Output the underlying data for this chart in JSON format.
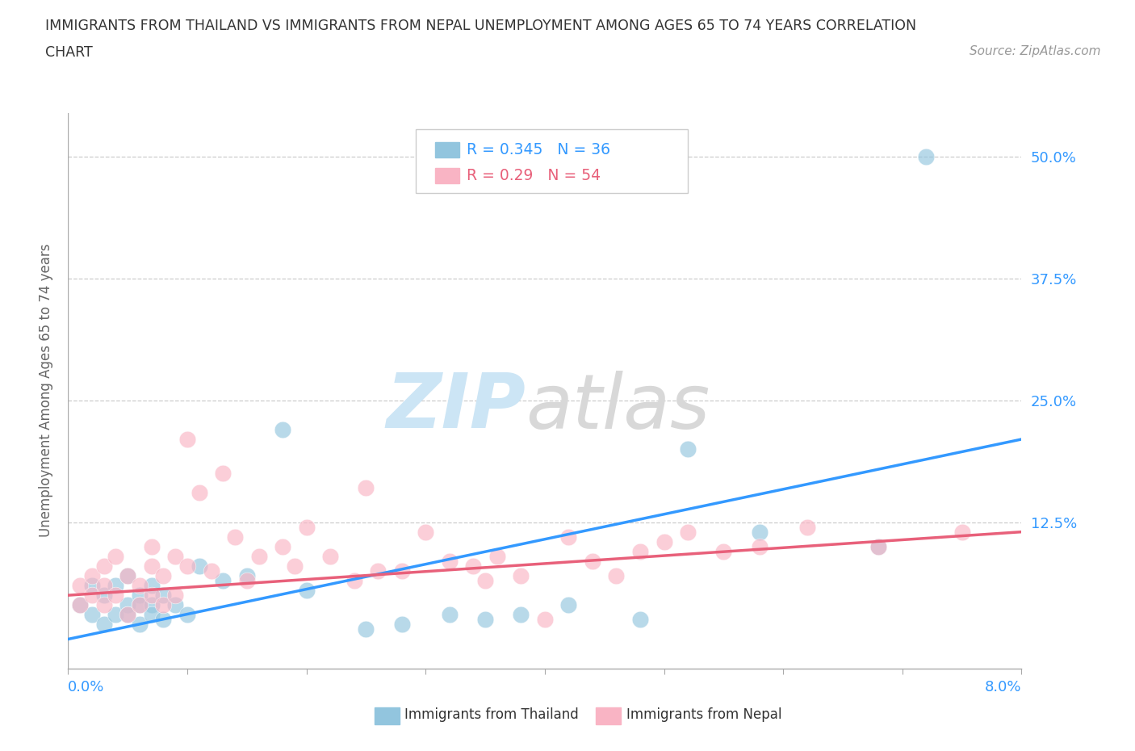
{
  "title_line1": "IMMIGRANTS FROM THAILAND VS IMMIGRANTS FROM NEPAL UNEMPLOYMENT AMONG AGES 65 TO 74 YEARS CORRELATION",
  "title_line2": "CHART",
  "source_text": "Source: ZipAtlas.com",
  "ylabel": "Unemployment Among Ages 65 to 74 years",
  "ytick_vals": [
    0.0,
    0.125,
    0.25,
    0.375,
    0.5
  ],
  "ytick_labels": [
    "",
    "12.5%",
    "25.0%",
    "37.5%",
    "50.0%"
  ],
  "xlim": [
    0.0,
    0.08
  ],
  "ylim": [
    -0.025,
    0.545
  ],
  "thailand_color": "#92c5de",
  "nepal_color": "#f9b4c4",
  "thailand_line_color": "#3399ff",
  "nepal_line_color": "#e8607a",
  "thailand_R": 0.345,
  "thailand_N": 36,
  "nepal_R": 0.29,
  "nepal_N": 54,
  "legend_label_thailand": "Immigrants from Thailand",
  "legend_label_nepal": "Immigrants from Nepal",
  "thailand_scatter_x": [
    0.001,
    0.002,
    0.002,
    0.003,
    0.003,
    0.004,
    0.004,
    0.005,
    0.005,
    0.005,
    0.006,
    0.006,
    0.006,
    0.007,
    0.007,
    0.007,
    0.008,
    0.008,
    0.009,
    0.01,
    0.011,
    0.013,
    0.015,
    0.018,
    0.02,
    0.025,
    0.028,
    0.032,
    0.035,
    0.038,
    0.042,
    0.048,
    0.052,
    0.058,
    0.068,
    0.072
  ],
  "thailand_scatter_y": [
    0.04,
    0.03,
    0.06,
    0.05,
    0.02,
    0.03,
    0.06,
    0.04,
    0.07,
    0.03,
    0.05,
    0.02,
    0.04,
    0.04,
    0.06,
    0.03,
    0.05,
    0.025,
    0.04,
    0.03,
    0.08,
    0.065,
    0.07,
    0.22,
    0.055,
    0.015,
    0.02,
    0.03,
    0.025,
    0.03,
    0.04,
    0.025,
    0.2,
    0.115,
    0.1,
    0.5
  ],
  "nepal_scatter_x": [
    0.001,
    0.001,
    0.002,
    0.002,
    0.003,
    0.003,
    0.003,
    0.004,
    0.004,
    0.005,
    0.005,
    0.006,
    0.006,
    0.007,
    0.007,
    0.007,
    0.008,
    0.008,
    0.009,
    0.009,
    0.01,
    0.01,
    0.011,
    0.012,
    0.013,
    0.014,
    0.015,
    0.016,
    0.018,
    0.019,
    0.02,
    0.022,
    0.024,
    0.025,
    0.026,
    0.028,
    0.03,
    0.032,
    0.034,
    0.035,
    0.036,
    0.038,
    0.04,
    0.042,
    0.044,
    0.046,
    0.048,
    0.05,
    0.052,
    0.055,
    0.058,
    0.062,
    0.068,
    0.075
  ],
  "nepal_scatter_y": [
    0.04,
    0.06,
    0.05,
    0.07,
    0.04,
    0.06,
    0.08,
    0.05,
    0.09,
    0.03,
    0.07,
    0.06,
    0.04,
    0.05,
    0.08,
    0.1,
    0.04,
    0.07,
    0.05,
    0.09,
    0.21,
    0.08,
    0.155,
    0.075,
    0.175,
    0.11,
    0.065,
    0.09,
    0.1,
    0.08,
    0.12,
    0.09,
    0.065,
    0.16,
    0.075,
    0.075,
    0.115,
    0.085,
    0.08,
    0.065,
    0.09,
    0.07,
    0.025,
    0.11,
    0.085,
    0.07,
    0.095,
    0.105,
    0.115,
    0.095,
    0.1,
    0.12,
    0.1,
    0.115
  ],
  "thailand_trend": [
    0.005,
    0.21
  ],
  "nepal_trend": [
    0.05,
    0.115
  ]
}
